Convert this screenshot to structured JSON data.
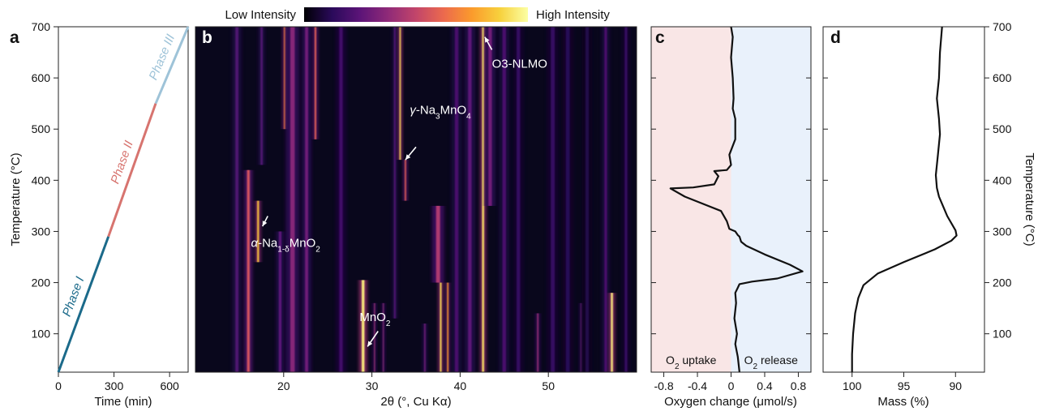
{
  "colorbar": {
    "low": "Low Intensity",
    "high": "High Intensity",
    "stops": [
      "#000004",
      "#2a0a5a",
      "#5c1478",
      "#8f2a78",
      "#c2456a",
      "#ec6a4d",
      "#fb9b2c",
      "#f7d13d",
      "#fcffa4"
    ]
  },
  "panels": {
    "a": "a",
    "b": "b",
    "c": "c",
    "d": "d"
  },
  "chart_data": [
    {
      "panel": "a",
      "type": "line",
      "xlabel": "Time (min)",
      "ylabel": "Temperature (°C)",
      "xlim": [
        0,
        700
      ],
      "ylim": [
        25,
        700
      ],
      "xticks": [
        "0",
        "300",
        "600"
      ],
      "yticks": [
        "100",
        "200",
        "300",
        "400",
        "500",
        "600",
        "700"
      ],
      "series": [
        {
          "name": "Phase I",
          "color": "#1b6a8a",
          "x": [
            0,
            270
          ],
          "y": [
            25,
            290
          ]
        },
        {
          "name": "Phase II",
          "color": "#d7746f",
          "x": [
            270,
            525
          ],
          "y": [
            290,
            550
          ]
        },
        {
          "name": "Phase III",
          "color": "#9ec3d8",
          "x": [
            525,
            700
          ],
          "y": [
            550,
            700
          ]
        }
      ]
    },
    {
      "panel": "b",
      "type": "heatmap",
      "xlabel": "2θ (°, Cu Kα)",
      "xlim": [
        10,
        60
      ],
      "ylim": [
        25,
        700
      ],
      "xticks": [
        "20",
        "30",
        "40",
        "50"
      ],
      "lines": [
        {
          "x": 14.7,
          "y0": 25,
          "y1": 700,
          "i": 0.22,
          "w": 0.35
        },
        {
          "x": 16.0,
          "y0": 25,
          "y1": 420,
          "i": 0.55,
          "w": 0.3
        },
        {
          "x": 17.1,
          "y0": 240,
          "y1": 360,
          "i": 0.85,
          "w": 0.2
        },
        {
          "x": 17.5,
          "y0": 430,
          "y1": 700,
          "i": 0.22,
          "w": 0.25
        },
        {
          "x": 19.6,
          "y0": 25,
          "y1": 300,
          "i": 0.25,
          "w": 0.3
        },
        {
          "x": 20.1,
          "y0": 500,
          "y1": 700,
          "i": 0.7,
          "w": 0.15
        },
        {
          "x": 21.0,
          "y0": 25,
          "y1": 700,
          "i": 0.35,
          "w": 0.5
        },
        {
          "x": 22.6,
          "y0": 25,
          "y1": 700,
          "i": 0.3,
          "w": 0.35
        },
        {
          "x": 23.6,
          "y0": 480,
          "y1": 700,
          "i": 0.6,
          "w": 0.18
        },
        {
          "x": 26.5,
          "y0": 25,
          "y1": 700,
          "i": 0.18,
          "w": 0.4
        },
        {
          "x": 29.0,
          "y0": 25,
          "y1": 205,
          "i": 0.95,
          "w": 0.3
        },
        {
          "x": 30.3,
          "y0": 25,
          "y1": 160,
          "i": 0.4,
          "w": 0.12
        },
        {
          "x": 31.3,
          "y0": 25,
          "y1": 160,
          "i": 0.35,
          "w": 0.12
        },
        {
          "x": 32.6,
          "y0": 130,
          "y1": 700,
          "i": 0.22,
          "w": 0.2
        },
        {
          "x": 33.2,
          "y0": 440,
          "y1": 700,
          "i": 0.9,
          "w": 0.15
        },
        {
          "x": 33.8,
          "y0": 360,
          "y1": 440,
          "i": 0.6,
          "w": 0.15
        },
        {
          "x": 36.0,
          "y0": 25,
          "y1": 120,
          "i": 0.3,
          "w": 0.15
        },
        {
          "x": 37.5,
          "y0": 200,
          "y1": 350,
          "i": 0.45,
          "w": 0.45
        },
        {
          "x": 37.8,
          "y0": 25,
          "y1": 200,
          "i": 0.9,
          "w": 0.18
        },
        {
          "x": 38.6,
          "y0": 25,
          "y1": 200,
          "i": 0.75,
          "w": 0.15
        },
        {
          "x": 39.6,
          "y0": 25,
          "y1": 700,
          "i": 0.2,
          "w": 0.4
        },
        {
          "x": 41.1,
          "y0": 25,
          "y1": 700,
          "i": 0.25,
          "w": 0.4
        },
        {
          "x": 42.6,
          "y0": 25,
          "y1": 700,
          "i": 0.92,
          "w": 0.22
        },
        {
          "x": 43.4,
          "y0": 350,
          "y1": 700,
          "i": 0.3,
          "w": 0.4
        },
        {
          "x": 45.0,
          "y0": 25,
          "y1": 700,
          "i": 0.2,
          "w": 0.4
        },
        {
          "x": 46.6,
          "y0": 25,
          "y1": 700,
          "i": 0.15,
          "w": 0.4
        },
        {
          "x": 48.8,
          "y0": 25,
          "y1": 140,
          "i": 0.4,
          "w": 0.15
        },
        {
          "x": 50.5,
          "y0": 25,
          "y1": 700,
          "i": 0.15,
          "w": 0.45
        },
        {
          "x": 52.2,
          "y0": 25,
          "y1": 700,
          "i": 0.12,
          "w": 0.45
        },
        {
          "x": 53.7,
          "y0": 25,
          "y1": 160,
          "i": 0.3,
          "w": 0.12
        },
        {
          "x": 54.4,
          "y0": 25,
          "y1": 700,
          "i": 0.1,
          "w": 0.4
        },
        {
          "x": 56.5,
          "y0": 25,
          "y1": 700,
          "i": 0.2,
          "w": 0.3
        },
        {
          "x": 57.2,
          "y0": 25,
          "y1": 180,
          "i": 0.95,
          "w": 0.22
        },
        {
          "x": 58.8,
          "y0": 25,
          "y1": 700,
          "i": 0.15,
          "w": 0.3
        }
      ],
      "annotations": [
        {
          "id": "nmo-alpha",
          "parts": [
            [
              "α",
              "it"
            ],
            [
              "-Na",
              ""
            ],
            [
              "1-δ",
              "sub"
            ],
            [
              "MnO",
              ""
            ],
            [
              "2",
              "sub"
            ]
          ],
          "x": 16.3,
          "y": 270,
          "ax": 17.6,
          "ay": 310,
          "tx": 18.2,
          "ty": 330
        },
        {
          "id": "nmo-gamma",
          "parts": [
            [
              "γ",
              "it"
            ],
            [
              "-Na",
              ""
            ],
            [
              "3",
              "sub"
            ],
            [
              "MnO",
              ""
            ],
            [
              "4",
              "sub"
            ]
          ],
          "x": 34.3,
          "y": 530,
          "ax": 33.8,
          "ay": 440,
          "tx": 35.0,
          "ty": 465
        },
        {
          "id": "o3-nlmo",
          "parts": [
            [
              "O3-NLMO",
              ""
            ]
          ],
          "x": 43.6,
          "y": 620,
          "ax": 42.8,
          "ay": 680,
          "tx": 43.6,
          "ty": 655
        },
        {
          "id": "mno2",
          "parts": [
            [
              "MnO",
              ""
            ],
            [
              "2",
              "sub"
            ]
          ],
          "x": 28.6,
          "y": 125,
          "ax": 29.5,
          "ay": 75,
          "tx": 30.7,
          "ty": 105
        }
      ]
    },
    {
      "panel": "c",
      "type": "line",
      "xlabel": "Oxygen change (μmol/s)",
      "xlim": [
        -0.95,
        0.95
      ],
      "ylim": [
        25,
        700
      ],
      "xticks": [
        "-0.8",
        "-0.4",
        "0",
        "0.4",
        "0.8"
      ],
      "regions": [
        {
          "label": "O₂ uptake",
          "color": "#f9e6e6",
          "x0": -0.95,
          "x1": 0
        },
        {
          "label": "O₂ release",
          "color": "#e9f1fb",
          "x0": 0,
          "x1": 0.95
        }
      ],
      "series": [
        {
          "name": "",
          "color": "#111111",
          "x": [
            0.1,
            0.08,
            0.05,
            0.07,
            0.04,
            0.06,
            0.05,
            0.08,
            0.1,
            0.25,
            0.55,
            0.85,
            0.7,
            0.4,
            0.18,
            0.12,
            0.1,
            0.08,
            0.05,
            -0.02,
            -0.05,
            -0.12,
            -0.55,
            -0.72,
            -0.45,
            -0.2,
            -0.15,
            -0.2,
            -0.05,
            0.0,
            -0.02,
            0.05,
            0.05,
            0.02,
            0.03,
            0.02,
            0.0,
            0.02,
            0.0
          ],
          "y": [
            25,
            55,
            80,
            100,
            130,
            160,
            180,
            190,
            197,
            202,
            208,
            222,
            235,
            255,
            272,
            280,
            290,
            293,
            300,
            305,
            320,
            340,
            368,
            384,
            386,
            392,
            408,
            418,
            420,
            430,
            450,
            480,
            520,
            540,
            560,
            600,
            640,
            680,
            700
          ]
        }
      ]
    },
    {
      "panel": "d",
      "type": "line",
      "xlabel": "Mass (%)",
      "ylabel": "Temperature (°C)",
      "xlim": [
        102.8,
        87.2
      ],
      "ylim": [
        25,
        700
      ],
      "xticks": [
        "100",
        "95",
        "90"
      ],
      "yticks": [
        "100",
        "200",
        "300",
        "400",
        "500",
        "600",
        "700"
      ],
      "series": [
        {
          "name": "",
          "color": "#111111",
          "x": [
            100.0,
            100.0,
            99.9,
            99.7,
            99.4,
            98.9,
            97.5,
            95.0,
            92.0,
            90.4,
            89.9,
            90.0,
            90.8,
            91.6,
            91.8,
            91.9,
            91.7,
            91.5,
            91.6,
            91.7,
            91.8,
            91.6,
            91.5,
            91.3
          ],
          "y": [
            25,
            60,
            100,
            140,
            170,
            195,
            218,
            240,
            265,
            282,
            292,
            302,
            330,
            368,
            385,
            410,
            450,
            490,
            520,
            540,
            560,
            600,
            650,
            700
          ]
        }
      ]
    }
  ]
}
